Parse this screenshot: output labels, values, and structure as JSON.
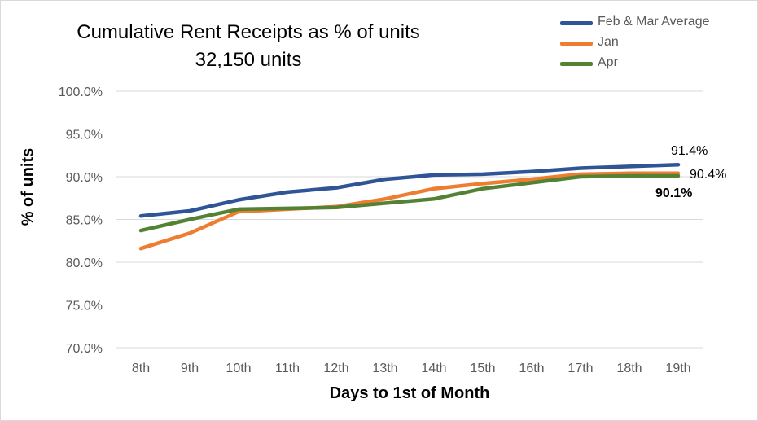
{
  "chart_data": {
    "type": "line",
    "title": "Cumulative Rent Receipts as % of units",
    "subtitle": "32,150 units",
    "xlabel": "Days to 1st of Month",
    "ylabel": "% of units",
    "categories": [
      "8th",
      "9th",
      "10th",
      "11th",
      "12th",
      "13th",
      "14th",
      "15th",
      "16th",
      "17th",
      "18th",
      "19th"
    ],
    "ylim": [
      70,
      100
    ],
    "yticks": [
      70,
      75,
      80,
      85,
      90,
      95,
      100
    ],
    "ytick_labels": [
      "70.0%",
      "75.0%",
      "80.0%",
      "85.0%",
      "90.0%",
      "95.0%",
      "100.0%"
    ],
    "grid": true,
    "legend_position": "top-right",
    "series": [
      {
        "name": "Feb & Mar Average",
        "color": "#2f5597",
        "values": [
          85.4,
          86.0,
          87.3,
          88.2,
          88.7,
          89.7,
          90.2,
          90.3,
          90.6,
          91.0,
          91.2,
          91.4
        ],
        "end_label": "91.4%",
        "end_label_bold": false
      },
      {
        "name": "Jan",
        "color": "#ed7d31",
        "values": [
          81.6,
          83.4,
          85.9,
          86.2,
          86.5,
          87.4,
          88.6,
          89.2,
          89.7,
          90.3,
          90.4,
          90.4
        ],
        "end_label": "90.4%",
        "end_label_bold": false
      },
      {
        "name": "Apr",
        "color": "#548235",
        "values": [
          83.7,
          85.0,
          86.2,
          86.3,
          86.4,
          86.9,
          87.4,
          88.6,
          89.3,
          90.0,
          90.1,
          90.1
        ],
        "end_label": "90.1%",
        "end_label_bold": true
      }
    ]
  }
}
